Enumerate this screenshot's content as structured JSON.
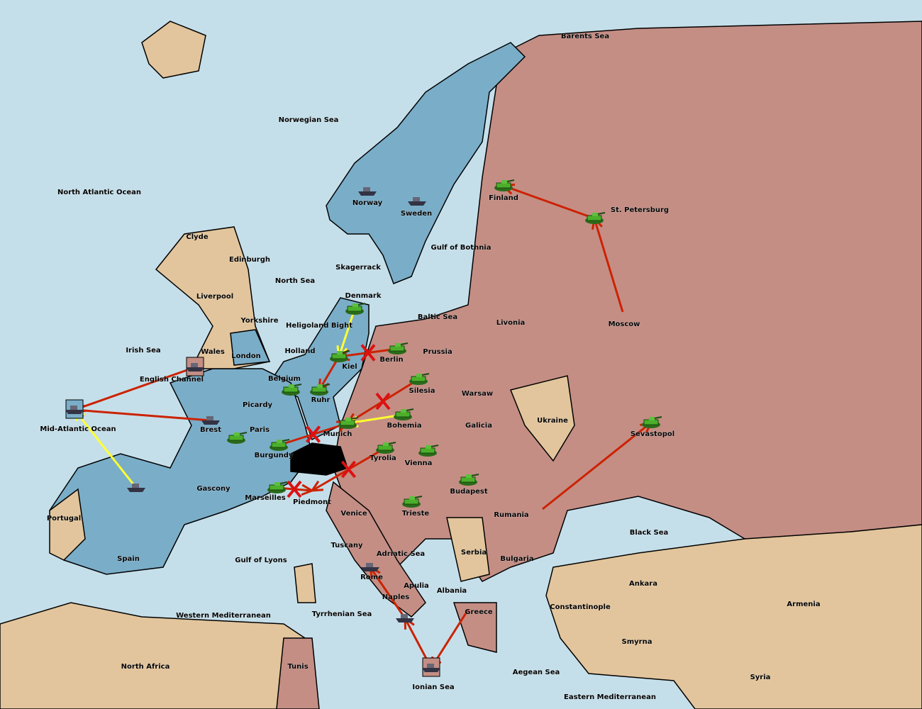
{
  "colors": {
    "sea": "#c5dfea",
    "power_blue": "#7aadc8",
    "power_red": "#c48e85",
    "neutral": "#e2c59c",
    "impassable": "#000000",
    "border": "#000000",
    "order_move": "#cc2200",
    "order_support": "#ffff33",
    "failed_mark": "#dd1111",
    "supply_center": "#ffffff",
    "star": "#ffff00"
  },
  "provinces": [
    "Barents Sea",
    "Norwegian Sea",
    "North Atlantic Ocean",
    "Norway",
    "Sweden",
    "Finland",
    "St. Petersburg",
    "Gulf of Bothnia",
    "Clyde",
    "Edinburgh",
    "North Sea",
    "Skagerrack",
    "Liverpool",
    "Yorkshire",
    "Denmark",
    "Heligoland Bight",
    "Baltic Sea",
    "Livonia",
    "Moscow",
    "Irish Sea",
    "Wales",
    "London",
    "Holland",
    "Kiel",
    "Berlin",
    "Prussia",
    "English Channel",
    "Belgium",
    "Ruhr",
    "Silesia",
    "Warsaw",
    "Mid-Atlantic Ocean",
    "Picardy",
    "Brest",
    "Paris",
    "Munich",
    "Bohemia",
    "Galicia",
    "Ukraine",
    "Sevastopol",
    "Burgundy",
    "Tyrolia",
    "Vienna",
    "Budapest",
    "Gascony",
    "Marseilles",
    "Piedmont",
    "Venice",
    "Trieste",
    "Rumania",
    "Portugal",
    "Spain",
    "Gulf of Lyons",
    "Tuscany",
    "Adriatic Sea",
    "Serbia",
    "Bulgaria",
    "Black Sea",
    "Rome",
    "Apulia",
    "Albania",
    "Naples",
    "Ankara",
    "Armenia",
    "Constantinople",
    "Western Mediterranean",
    "Tyrrhenian Sea",
    "Greece",
    "Smyrna",
    "North Africa",
    "Tunis",
    "Ionian Sea",
    "Aegean Sea",
    "Syria",
    "Eastern Mediterranean"
  ],
  "units": [
    {
      "type": "fleet",
      "province": "Norway",
      "power": "blue"
    },
    {
      "type": "fleet",
      "province": "Sweden",
      "power": "blue"
    },
    {
      "type": "army",
      "province": "Finland",
      "power": "red"
    },
    {
      "type": "army",
      "province": "St. Petersburg",
      "power": "red"
    },
    {
      "type": "army",
      "province": "Denmark",
      "power": "blue"
    },
    {
      "type": "army",
      "province": "Kiel",
      "power": "blue"
    },
    {
      "type": "army",
      "province": "Berlin",
      "power": "red"
    },
    {
      "type": "army",
      "province": "Ruhr",
      "power": "blue"
    },
    {
      "type": "army",
      "province": "Belgium",
      "power": "blue"
    },
    {
      "type": "army",
      "province": "Silesia",
      "power": "red"
    },
    {
      "type": "army",
      "province": "Bohemia",
      "power": "red"
    },
    {
      "type": "army",
      "province": "Munich",
      "power": "blue"
    },
    {
      "type": "fleet",
      "province": "English Channel",
      "power": "red"
    },
    {
      "type": "fleet",
      "province": "Mid-Atlantic Ocean",
      "power": "blue"
    },
    {
      "type": "fleet",
      "province": "Brest",
      "power": "blue"
    },
    {
      "type": "army",
      "province": "Paris",
      "power": "blue"
    },
    {
      "type": "army",
      "province": "Burgundy",
      "power": "blue"
    },
    {
      "type": "army",
      "province": "Tyrolia",
      "power": "red"
    },
    {
      "type": "army",
      "province": "Vienna",
      "power": "red"
    },
    {
      "type": "army",
      "province": "Budapest",
      "power": "red"
    },
    {
      "type": "army",
      "province": "Marseilles",
      "power": "blue"
    },
    {
      "type": "army",
      "province": "Trieste",
      "power": "red"
    },
    {
      "type": "fleet",
      "province": "Spain",
      "power": "blue"
    },
    {
      "type": "army",
      "province": "Sevastopol",
      "power": "red"
    },
    {
      "type": "fleet",
      "province": "Rome",
      "power": "blue"
    },
    {
      "type": "fleet",
      "province": "Naples",
      "power": "blue"
    },
    {
      "type": "fleet",
      "province": "Ionian Sea",
      "power": "red"
    }
  ],
  "orders": [
    {
      "from": "St. Petersburg",
      "to": "Finland",
      "kind": "move"
    },
    {
      "from": "Moscow",
      "to": "St. Petersburg",
      "kind": "move"
    },
    {
      "from": "English Channel",
      "to": "Mid-Atlantic Ocean",
      "kind": "move"
    },
    {
      "from": "Brest",
      "to": "Mid-Atlantic Ocean",
      "kind": "move"
    },
    {
      "from": "Spain",
      "to": "Mid-Atlantic Ocean",
      "kind": "support"
    },
    {
      "from": "Denmark",
      "to": "Kiel",
      "kind": "support"
    },
    {
      "from": "Berlin",
      "to": "Kiel",
      "kind": "move",
      "failed": true
    },
    {
      "from": "Kiel",
      "to": "Ruhr",
      "kind": "move"
    },
    {
      "from": "Silesia",
      "to": "Munich",
      "kind": "move",
      "failed": true
    },
    {
      "from": "Bohemia",
      "to": "Munich",
      "kind": "support"
    },
    {
      "from": "Burgundy",
      "to": "Munich",
      "kind": "move",
      "failed": true
    },
    {
      "from": "Tyrolia",
      "to": "Piedmont",
      "kind": "move",
      "failed": true
    },
    {
      "from": "Marseilles",
      "to": "Piedmont",
      "kind": "move",
      "failed": true
    },
    {
      "from": "Rumania",
      "to": "Sevastopol",
      "kind": "move"
    },
    {
      "from": "Ionian Sea",
      "to": "Naples",
      "kind": "move"
    },
    {
      "from": "Greece",
      "to": "Ionian Sea",
      "kind": "move"
    },
    {
      "from": "Naples",
      "to": "Rome",
      "kind": "move"
    }
  ]
}
